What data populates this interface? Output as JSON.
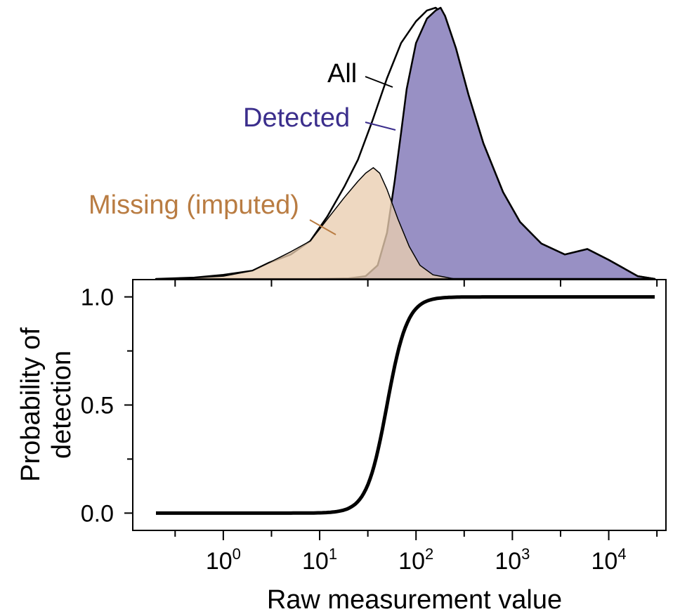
{
  "chart_data": [
    {
      "type": "area",
      "panel": "density",
      "x_scale": "log10",
      "xlim": [
        0.2,
        30000
      ],
      "series": [
        {
          "name": "All",
          "fill": "#ffffff",
          "stroke": "#000000",
          "x": [
            0.2,
            0.5,
            1,
            2,
            3,
            5,
            8,
            12,
            18,
            25,
            35,
            50,
            70,
            100,
            130,
            160,
            200,
            260,
            350,
            500,
            800,
            1200,
            2000,
            3500,
            6000,
            10000,
            20000,
            30000
          ],
          "y": [
            0,
            0.005,
            0.015,
            0.03,
            0.06,
            0.09,
            0.14,
            0.23,
            0.34,
            0.44,
            0.58,
            0.74,
            0.87,
            0.95,
            0.99,
            1.0,
            0.97,
            0.85,
            0.68,
            0.5,
            0.32,
            0.21,
            0.13,
            0.09,
            0.11,
            0.07,
            0.01,
            0
          ]
        },
        {
          "name": "Detected",
          "fill": "#9890c4",
          "stroke": "#000000",
          "x": [
            10,
            20,
            30,
            40,
            50,
            60,
            70,
            80,
            100,
            130,
            160,
            180,
            200,
            260,
            350,
            500,
            800,
            1200,
            2000,
            3500,
            6000,
            10000,
            20000,
            30000
          ],
          "y": [
            0,
            0.002,
            0.01,
            0.05,
            0.17,
            0.36,
            0.54,
            0.7,
            0.87,
            0.96,
            0.99,
            1.0,
            0.97,
            0.85,
            0.68,
            0.5,
            0.32,
            0.21,
            0.13,
            0.09,
            0.11,
            0.07,
            0.01,
            0
          ]
        },
        {
          "name": "Missing (imputed)",
          "fill": "#e9cdb0",
          "stroke": "#000000",
          "x": [
            0.3,
            1,
            2,
            3,
            5,
            8,
            12,
            18,
            25,
            30,
            36,
            42,
            50,
            65,
            85,
            110,
            150,
            250
          ],
          "y": [
            0,
            0.01,
            0.03,
            0.06,
            0.1,
            0.14,
            0.22,
            0.3,
            0.36,
            0.39,
            0.41,
            0.39,
            0.33,
            0.22,
            0.12,
            0.05,
            0.015,
            0
          ]
        }
      ],
      "annotations": [
        "All",
        "Detected",
        "Missing (imputed)"
      ]
    },
    {
      "type": "line",
      "panel": "detection",
      "x_scale": "log10",
      "xlim": [
        0.2,
        30000
      ],
      "ylim": [
        -0.08,
        1.08
      ],
      "xlabel": "Raw measurement value",
      "ylabel": "Probability of detection",
      "yticks": [
        0.0,
        0.5,
        1.0
      ],
      "ytick_labels": [
        "0.0",
        "0.5",
        "1.0"
      ],
      "xtick_labels": [
        {
          "base": "10",
          "exp": "0"
        },
        {
          "base": "10",
          "exp": "1"
        },
        {
          "base": "10",
          "exp": "2"
        },
        {
          "base": "10",
          "exp": "3"
        },
        {
          "base": "10",
          "exp": "4"
        }
      ],
      "series": [
        {
          "name": "",
          "curve": "logistic in log10(x)",
          "midpoint": 50,
          "slope": 9.5,
          "x": [
            0.2,
            1,
            5,
            10,
            20,
            30,
            40,
            50,
            60,
            80,
            100,
            200,
            1000,
            30000
          ],
          "y": [
            0.0,
            0.0,
            0.0,
            0.001,
            0.02,
            0.12,
            0.3,
            0.5,
            0.65,
            0.85,
            0.93,
            0.998,
            1.0,
            1.0
          ]
        }
      ]
    }
  ]
}
